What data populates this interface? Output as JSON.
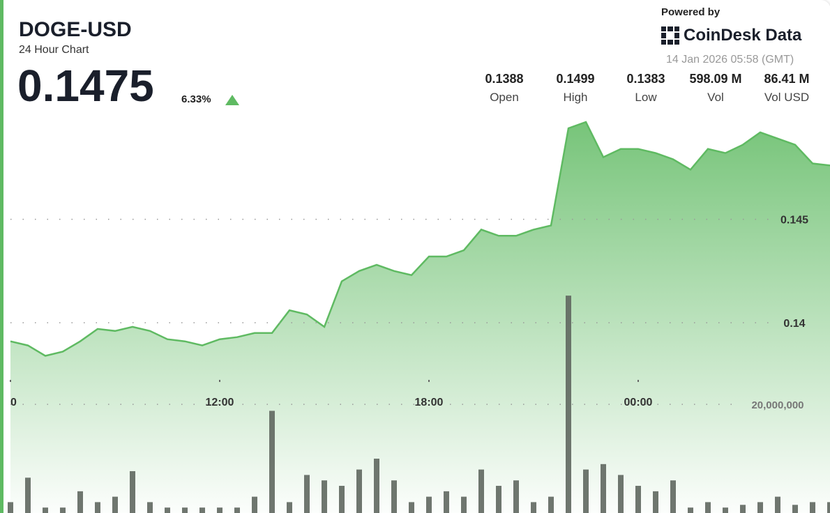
{
  "header": {
    "symbol": "DOGE-USD",
    "subtitle": "24 Hour Chart",
    "price": "0.1475",
    "change": "6.33%",
    "powered_by": "Powered by",
    "brand": "CoinDesk Data",
    "timestamp": "14 Jan 2026 05:58 (GMT)"
  },
  "stats": [
    {
      "value": "0.1388",
      "label": "Open"
    },
    {
      "value": "0.1499",
      "label": "High"
    },
    {
      "value": "0.1383",
      "label": "Low"
    },
    {
      "value": "598.09 M",
      "label": "Vol"
    },
    {
      "value": "86.41 M",
      "label": "Vol USD"
    }
  ],
  "chart_data": {
    "type": "area",
    "color": "#5fba62",
    "volume_color": "#5f675f",
    "x": [
      6,
      6.5,
      7,
      7.5,
      8,
      8.5,
      9,
      9.5,
      10,
      10.5,
      11,
      11.5,
      12,
      12.5,
      13,
      13.5,
      14,
      14.5,
      15,
      15.5,
      16,
      16.5,
      17,
      17.5,
      18,
      18.5,
      19,
      19.5,
      20,
      20.5,
      21,
      21.5,
      22,
      22.5,
      23,
      23.5,
      24,
      24.5,
      25,
      25.5,
      26,
      26.5,
      27,
      27.5,
      28,
      28.5,
      29,
      29.5
    ],
    "values": [
      0.1391,
      0.1389,
      0.1384,
      0.1386,
      0.1391,
      0.1397,
      0.1396,
      0.1398,
      0.1396,
      0.1392,
      0.1391,
      0.1389,
      0.1392,
      0.1393,
      0.1395,
      0.1395,
      0.1406,
      0.1404,
      0.1398,
      0.142,
      0.1425,
      0.1428,
      0.1425,
      0.1423,
      0.1432,
      0.1432,
      0.1435,
      0.1445,
      0.1442,
      0.1442,
      0.1445,
      0.1447,
      0.1494,
      0.1497,
      0.148,
      0.1484,
      0.1484,
      0.1482,
      0.1479,
      0.1474,
      0.1484,
      0.1482,
      0.1486,
      0.1492,
      0.1489,
      0.1486,
      0.1477,
      0.1476
    ],
    "volume": [
      2000000,
      6500000,
      1000000,
      1000000,
      4000000,
      2000000,
      3000000,
      7700000,
      2000000,
      1000000,
      1000000,
      1000000,
      1000000,
      1000000,
      3000000,
      18800000,
      2000000,
      7000000,
      6000000,
      5000000,
      8000000,
      10000000,
      6000000,
      2000000,
      3000000,
      4000000,
      3000000,
      8000000,
      5000000,
      6000000,
      2000000,
      3000000,
      40000000,
      8000000,
      9000000,
      7000000,
      5000000,
      4000000,
      6000000,
      1000000,
      2000000,
      1000000,
      1500000,
      2000000,
      3000000,
      1500000,
      2000000,
      2000000
    ],
    "xlim": [
      5.8,
      29.52
    ],
    "xticks": [
      {
        "value": 6,
        "label": "0"
      },
      {
        "value": 12,
        "label": "12:00"
      },
      {
        "value": 18,
        "label": "18:00"
      },
      {
        "value": 24,
        "label": "00:00"
      }
    ],
    "ylim": [
      0.1308,
      0.1556
    ],
    "yticks": [
      0.14,
      0.145
    ],
    "y2lim": [
      0,
      94400000
    ],
    "y2ticks": [
      {
        "value": 20000000,
        "label": "20,000,000"
      }
    ],
    "grid": true
  }
}
